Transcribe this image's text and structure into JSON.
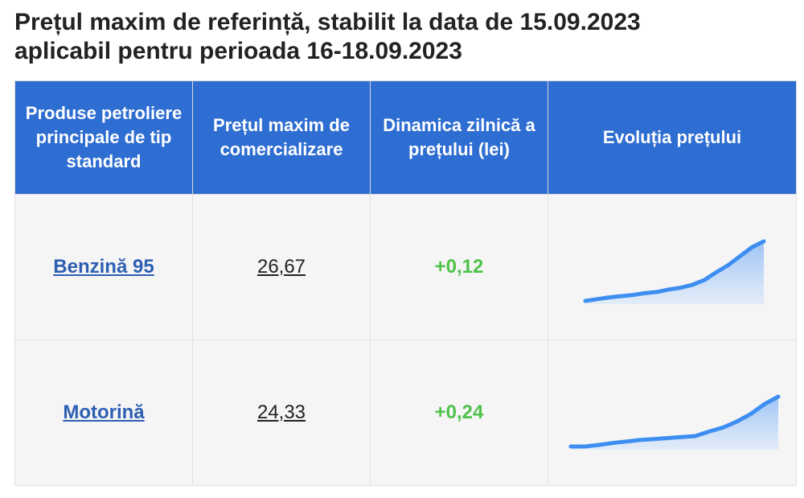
{
  "title": {
    "line1": "Prețul maxim de referință, stabilit la data de 15.09.2023",
    "line2": "aplicabil pentru perioada 16-18.09.2023"
  },
  "table": {
    "headers": [
      "Produse petroliere principale de tip standard",
      "Prețul maxim de comercializare",
      "Dinamica zilnică a prețului (lei)",
      "Evoluția prețului"
    ],
    "rows": [
      {
        "product": "Benzină 95",
        "price": "26,67",
        "delta": "+0,12",
        "trend": [
          0.0,
          0.03,
          0.06,
          0.08,
          0.1,
          0.13,
          0.15,
          0.19,
          0.22,
          0.27,
          0.35,
          0.48,
          0.6,
          0.75,
          0.9,
          1.0
        ]
      },
      {
        "product": "Motorină",
        "price": "24,33",
        "delta": "+0,24",
        "trend": [
          0.0,
          0.0,
          0.03,
          0.07,
          0.1,
          0.13,
          0.15,
          0.17,
          0.19,
          0.21,
          0.3,
          0.38,
          0.5,
          0.65,
          0.85,
          1.0
        ]
      }
    ]
  },
  "colors": {
    "header_bg": "#2e6dd1",
    "spark_line": "#3d8ef0",
    "delta": "#4fc24a",
    "link": "#2d5fb3"
  }
}
